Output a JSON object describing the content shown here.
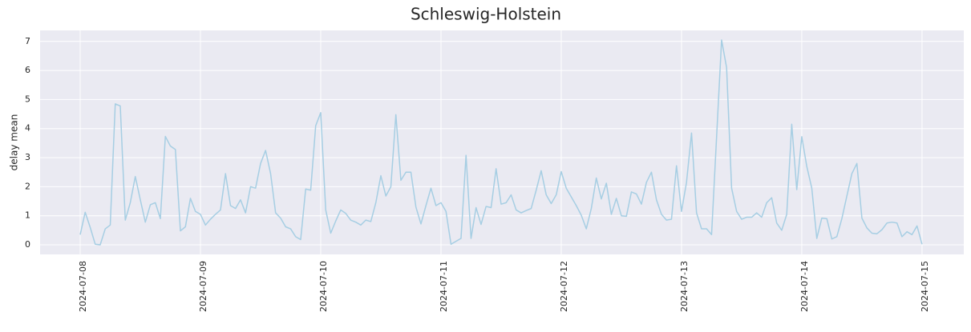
{
  "chart_data": {
    "type": "line",
    "title": "Schleswig-Holstein",
    "y_label": "delay mean",
    "x": [
      "2024-07-08 00:00",
      "2024-07-08 01:00",
      "2024-07-08 02:00",
      "2024-07-08 03:00",
      "2024-07-08 04:00",
      "2024-07-08 05:00",
      "2024-07-08 06:00",
      "2024-07-08 07:00",
      "2024-07-08 08:00",
      "2024-07-08 09:00",
      "2024-07-08 10:00",
      "2024-07-08 11:00",
      "2024-07-08 12:00",
      "2024-07-08 13:00",
      "2024-07-08 14:00",
      "2024-07-08 15:00",
      "2024-07-08 16:00",
      "2024-07-08 17:00",
      "2024-07-08 18:00",
      "2024-07-08 19:00",
      "2024-07-08 20:00",
      "2024-07-08 21:00",
      "2024-07-08 22:00",
      "2024-07-08 23:00",
      "2024-07-09 00:00",
      "2024-07-09 01:00",
      "2024-07-09 02:00",
      "2024-07-09 03:00",
      "2024-07-09 04:00",
      "2024-07-09 05:00",
      "2024-07-09 06:00",
      "2024-07-09 07:00",
      "2024-07-09 08:00",
      "2024-07-09 09:00",
      "2024-07-09 10:00",
      "2024-07-09 11:00",
      "2024-07-09 12:00",
      "2024-07-09 13:00",
      "2024-07-09 14:00",
      "2024-07-09 15:00",
      "2024-07-09 16:00",
      "2024-07-09 17:00",
      "2024-07-09 18:00",
      "2024-07-09 19:00",
      "2024-07-09 20:00",
      "2024-07-09 21:00",
      "2024-07-09 22:00",
      "2024-07-09 23:00",
      "2024-07-10 00:00",
      "2024-07-10 01:00",
      "2024-07-10 02:00",
      "2024-07-10 03:00",
      "2024-07-10 04:00",
      "2024-07-10 05:00",
      "2024-07-10 06:00",
      "2024-07-10 07:00",
      "2024-07-10 08:00",
      "2024-07-10 09:00",
      "2024-07-10 10:00",
      "2024-07-10 11:00",
      "2024-07-10 12:00",
      "2024-07-10 13:00",
      "2024-07-10 14:00",
      "2024-07-10 15:00",
      "2024-07-10 16:00",
      "2024-07-10 17:00",
      "2024-07-10 18:00",
      "2024-07-10 19:00",
      "2024-07-10 20:00",
      "2024-07-10 21:00",
      "2024-07-10 22:00",
      "2024-07-10 23:00",
      "2024-07-11 00:00",
      "2024-07-11 01:00",
      "2024-07-11 02:00",
      "2024-07-11 03:00",
      "2024-07-11 04:00",
      "2024-07-11 05:00",
      "2024-07-11 06:00",
      "2024-07-11 07:00",
      "2024-07-11 08:00",
      "2024-07-11 09:00",
      "2024-07-11 10:00",
      "2024-07-11 11:00",
      "2024-07-11 12:00",
      "2024-07-11 13:00",
      "2024-07-11 14:00",
      "2024-07-11 15:00",
      "2024-07-11 16:00",
      "2024-07-11 17:00",
      "2024-07-11 18:00",
      "2024-07-11 19:00",
      "2024-07-11 20:00",
      "2024-07-11 21:00",
      "2024-07-11 22:00",
      "2024-07-11 23:00",
      "2024-07-12 00:00",
      "2024-07-12 01:00",
      "2024-07-12 02:00",
      "2024-07-12 03:00",
      "2024-07-12 04:00",
      "2024-07-12 05:00",
      "2024-07-12 06:00",
      "2024-07-12 07:00",
      "2024-07-12 08:00",
      "2024-07-12 09:00",
      "2024-07-12 10:00",
      "2024-07-12 11:00",
      "2024-07-12 12:00",
      "2024-07-12 13:00",
      "2024-07-12 14:00",
      "2024-07-12 15:00",
      "2024-07-12 16:00",
      "2024-07-12 17:00",
      "2024-07-12 18:00",
      "2024-07-12 19:00",
      "2024-07-12 20:00",
      "2024-07-12 21:00",
      "2024-07-12 22:00",
      "2024-07-12 23:00",
      "2024-07-13 00:00",
      "2024-07-13 01:00",
      "2024-07-13 02:00",
      "2024-07-13 03:00",
      "2024-07-13 04:00",
      "2024-07-13 05:00",
      "2024-07-13 06:00",
      "2024-07-13 07:00",
      "2024-07-13 08:00",
      "2024-07-13 09:00",
      "2024-07-13 10:00",
      "2024-07-13 11:00",
      "2024-07-13 12:00",
      "2024-07-13 13:00",
      "2024-07-13 14:00",
      "2024-07-13 15:00",
      "2024-07-13 16:00",
      "2024-07-13 17:00",
      "2024-07-13 18:00",
      "2024-07-13 19:00",
      "2024-07-13 20:00",
      "2024-07-13 21:00",
      "2024-07-13 22:00",
      "2024-07-13 23:00",
      "2024-07-14 00:00",
      "2024-07-14 01:00",
      "2024-07-14 02:00",
      "2024-07-14 03:00",
      "2024-07-14 04:00",
      "2024-07-14 05:00",
      "2024-07-14 06:00",
      "2024-07-14 07:00",
      "2024-07-14 08:00",
      "2024-07-14 09:00",
      "2024-07-14 10:00",
      "2024-07-14 11:00",
      "2024-07-14 12:00",
      "2024-07-14 13:00",
      "2024-07-14 14:00",
      "2024-07-14 15:00",
      "2024-07-14 16:00",
      "2024-07-14 17:00",
      "2024-07-14 18:00",
      "2024-07-14 19:00",
      "2024-07-14 20:00",
      "2024-07-14 21:00",
      "2024-07-14 22:00",
      "2024-07-14 23:00",
      "2024-07-15 00:00"
    ],
    "values": [
      0.35,
      1.12,
      0.6,
      0.02,
      0.0,
      0.55,
      0.68,
      4.85,
      4.78,
      0.85,
      1.45,
      2.35,
      1.55,
      0.78,
      1.38,
      1.45,
      0.9,
      3.73,
      3.4,
      3.28,
      0.48,
      0.62,
      1.6,
      1.15,
      1.05,
      0.68,
      0.88,
      1.05,
      1.2,
      2.45,
      1.35,
      1.25,
      1.55,
      1.1,
      2.0,
      1.95,
      2.8,
      3.25,
      2.45,
      1.1,
      0.92,
      0.62,
      0.55,
      0.28,
      0.18,
      1.92,
      1.88,
      4.1,
      4.55,
      1.2,
      0.4,
      0.82,
      1.2,
      1.08,
      0.85,
      0.78,
      0.68,
      0.85,
      0.8,
      1.45,
      2.38,
      1.68,
      2.0,
      4.48,
      2.22,
      2.5,
      2.5,
      1.3,
      0.72,
      1.35,
      1.95,
      1.35,
      1.45,
      1.15,
      0.02,
      0.12,
      0.22,
      3.08,
      0.22,
      1.28,
      0.7,
      1.32,
      1.28,
      2.62,
      1.4,
      1.45,
      1.72,
      1.2,
      1.1,
      1.18,
      1.25,
      1.88,
      2.55,
      1.72,
      1.42,
      1.72,
      2.52,
      1.95,
      1.65,
      1.35,
      1.02,
      0.55,
      1.25,
      2.3,
      1.58,
      2.12,
      1.05,
      1.6,
      1.0,
      0.98,
      1.82,
      1.75,
      1.4,
      2.15,
      2.5,
      1.55,
      1.05,
      0.85,
      0.88,
      2.72,
      1.15,
      2.15,
      3.85,
      1.1,
      0.55,
      0.55,
      0.35,
      3.7,
      7.05,
      6.1,
      1.95,
      1.15,
      0.88,
      0.95,
      0.95,
      1.1,
      0.95,
      1.45,
      1.62,
      0.75,
      0.5,
      1.05,
      4.15,
      1.9,
      3.72,
      2.7,
      1.95,
      0.22,
      0.92,
      0.9,
      0.2,
      0.28,
      0.9,
      1.68,
      2.45,
      2.8,
      0.92,
      0.58,
      0.4,
      0.38,
      0.52,
      0.75,
      0.78,
      0.75,
      0.28,
      0.45,
      0.35,
      0.65,
      0.02
    ],
    "color": "#a6cee3",
    "xlim": [
      "2024-07-07 16:00",
      "2024-07-15 08:20"
    ],
    "xticks": [
      "2024-07-08",
      "2024-07-09",
      "2024-07-10",
      "2024-07-11",
      "2024-07-12",
      "2024-07-13",
      "2024-07-14",
      "2024-07-15"
    ],
    "ylim": [
      -0.33,
      7.38
    ],
    "yticks": [
      0,
      1,
      2,
      3,
      4,
      5,
      6,
      7
    ],
    "grid": true
  }
}
